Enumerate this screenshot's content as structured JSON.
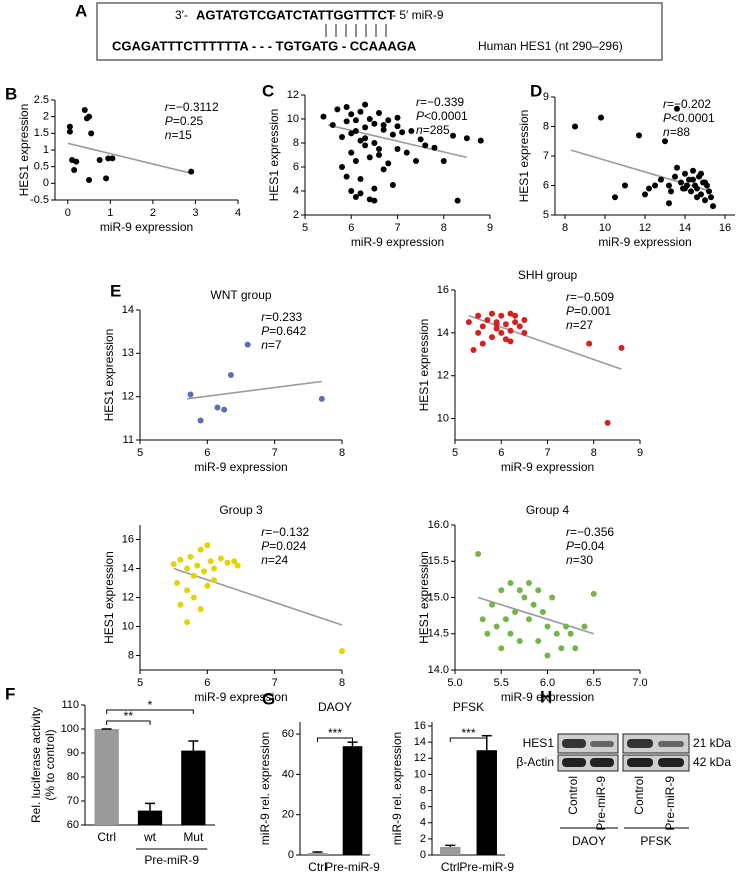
{
  "panel_labels": [
    "A",
    "B",
    "C",
    "D",
    "E",
    "F",
    "G",
    "H"
  ],
  "sequence": {
    "top_prefix": "3′-",
    "top_seq": "AGTATGTCGATCTATTGGTTTCT",
    "top_suffix": "- 5′ miR-9",
    "bottom_seq": "CGAGATTTCTTTTTTA - - - TGTGATG - CCAAAGA",
    "bottom_label": "Human HES1 (nt 290–296)"
  },
  "chart_data": [
    {
      "type": "scatter",
      "xlabel": "miR-9 expression",
      "ylabel": "HES1 expression",
      "stats": [
        "r=−0.3112",
        "P=0.25",
        "n=15"
      ],
      "series": [
        {
          "color": "#000000",
          "x": [
            0.05,
            0.05,
            0.1,
            0.15,
            0.2,
            0.4,
            0.45,
            0.5,
            0.5,
            0.55,
            0.75,
            0.9,
            0.95,
            1.05,
            2.9
          ],
          "y": [
            1.7,
            1.55,
            0.7,
            0.4,
            0.65,
            2.2,
            1.95,
            2.0,
            0.1,
            1.5,
            0.7,
            0.15,
            0.75,
            0.75,
            0.35
          ]
        }
      ],
      "trend": {
        "x": [
          0,
          2.9
        ],
        "y": [
          1.2,
          0.3
        ]
      },
      "xlim": [
        -0.3,
        4
      ],
      "xticks": [
        0,
        1,
        2,
        3,
        4
      ],
      "ylim": [
        -0.5,
        2.5
      ],
      "yticks": [
        -0.5,
        0,
        0.5,
        1,
        1.5,
        2,
        2.5
      ]
    },
    {
      "type": "scatter",
      "xlabel": "miR-9 expression",
      "ylabel": "HES1 expression",
      "stats": [
        "r=−0.339",
        "P<0.0001",
        "n=285"
      ],
      "series": [
        {
          "color": "#000000",
          "x": [
            5.4,
            5.6,
            5.7,
            5.8,
            5.8,
            5.9,
            5.9,
            6.0,
            6.0,
            6.0,
            6.1,
            6.1,
            6.1,
            6.2,
            6.2,
            6.2,
            6.3,
            6.3,
            6.3,
            6.4,
            6.4,
            6.4,
            6.5,
            6.5,
            6.5,
            6.6,
            6.6,
            6.7,
            6.7,
            6.8,
            6.8,
            6.9,
            6.9,
            7.0,
            7.0,
            7.1,
            7.2,
            7.3,
            7.4,
            7.5,
            7.6,
            7.8,
            8.0,
            8.2,
            8.3,
            8.5,
            5.9,
            6.0,
            6.2,
            6.5,
            6.7,
            7.0,
            6.1,
            6.3,
            6.6,
            8.8
          ],
          "y": [
            10.2,
            9.5,
            10.8,
            8.5,
            6.0,
            9.8,
            11.0,
            10.4,
            8.8,
            7.2,
            9.9,
            6.5,
            3.5,
            10.6,
            8.2,
            5.0,
            9.3,
            7.8,
            11.2,
            10.0,
            6.8,
            3.3,
            9.6,
            8.0,
            4.2,
            10.5,
            7.0,
            9.1,
            5.8,
            9.9,
            6.3,
            8.7,
            4.5,
            9.4,
            7.5,
            8.9,
            7.2,
            9.0,
            6.5,
            8.3,
            7.8,
            7.6,
            6.5,
            8.6,
            3.2,
            8.4,
            5.2,
            4.0,
            3.8,
            3.2,
            9.5,
            10.1,
            9.0,
            8.4,
            7.5,
            8.2
          ]
        }
      ],
      "trend": {
        "x": [
          5.5,
          8.5
        ],
        "y": [
          9.5,
          6.8
        ]
      },
      "xlim": [
        5,
        9
      ],
      "xticks": [
        5,
        6,
        7,
        8,
        9
      ],
      "ylim": [
        2,
        12
      ],
      "yticks": [
        2,
        4,
        6,
        8,
        10,
        12
      ]
    },
    {
      "type": "scatter",
      "xlabel": "miR-9 expression",
      "ylabel": "HES1 expression",
      "stats": [
        "r=−0.202",
        "P<0.0001",
        "n=88"
      ],
      "series": [
        {
          "color": "#000000",
          "x": [
            8.5,
            9.8,
            11.7,
            12.2,
            12.5,
            12.8,
            13.0,
            13.2,
            13.3,
            13.5,
            13.6,
            13.8,
            13.9,
            14.0,
            14.1,
            14.2,
            14.3,
            14.4,
            14.5,
            14.6,
            14.7,
            14.8,
            14.9,
            15.0,
            15.1,
            15.2,
            15.3,
            15.4,
            13.6,
            14.0,
            14.4,
            14.8,
            12.0,
            11.0,
            10.5,
            13.2,
            14.6,
            15.0
          ],
          "y": [
            8.0,
            8.3,
            7.7,
            5.9,
            6.0,
            6.2,
            7.5,
            6.0,
            5.8,
            6.3,
            8.6,
            6.1,
            5.9,
            6.4,
            6.0,
            6.2,
            5.8,
            6.5,
            6.0,
            5.9,
            6.3,
            5.7,
            6.1,
            5.5,
            6.0,
            5.8,
            5.6,
            5.3,
            6.6,
            5.9,
            6.2,
            6.4,
            5.7,
            6.0,
            5.6,
            5.4,
            5.6,
            6.1
          ]
        }
      ],
      "trend": {
        "x": [
          8.3,
          15.3
        ],
        "y": [
          7.2,
          5.8
        ]
      },
      "xlim": [
        7.5,
        16.5
      ],
      "xticks": [
        8,
        10,
        12,
        14,
        16
      ],
      "ylim": [
        5,
        9
      ],
      "yticks": [
        5,
        6,
        7,
        8,
        9
      ]
    },
    {
      "type": "scatter",
      "title": "WNT group",
      "xlabel": "miR-9 expression",
      "ylabel": "HES1 expression",
      "stats": [
        "r=0.233",
        "P=0.642",
        "n=7"
      ],
      "series": [
        {
          "color": "#5b6fb8",
          "x": [
            5.75,
            5.9,
            6.15,
            6.25,
            6.35,
            6.6,
            7.7
          ],
          "y": [
            12.05,
            11.45,
            11.75,
            11.7,
            12.5,
            13.2,
            11.95
          ]
        }
      ],
      "trend": {
        "x": [
          5.7,
          7.7
        ],
        "y": [
          11.95,
          12.35
        ]
      },
      "xlim": [
        5,
        8
      ],
      "xticks": [
        5,
        6,
        7,
        8
      ],
      "ylim": [
        11,
        14
      ],
      "yticks": [
        11,
        12,
        13,
        14
      ]
    },
    {
      "type": "scatter",
      "title": "SHH group",
      "xlabel": "miR-9 expression",
      "ylabel": "HES1 expression",
      "stats": [
        "r=−0.509",
        "P=0.001",
        "n=27"
      ],
      "series": [
        {
          "color": "#d42020",
          "x": [
            5.3,
            5.4,
            5.5,
            5.5,
            5.6,
            5.7,
            5.8,
            5.8,
            5.9,
            5.9,
            6.0,
            6.0,
            6.1,
            6.1,
            6.2,
            6.2,
            6.3,
            6.3,
            6.4,
            6.5,
            6.5,
            5.6,
            5.9,
            6.2,
            7.9,
            8.3,
            8.6
          ],
          "y": [
            14.5,
            13.2,
            14.8,
            14.0,
            14.3,
            14.6,
            13.8,
            14.9,
            14.2,
            14.5,
            14.0,
            14.8,
            14.4,
            13.7,
            14.9,
            14.1,
            14.5,
            14.8,
            14.3,
            14.6,
            14.0,
            13.5,
            14.4,
            13.6,
            13.5,
            9.8,
            13.3
          ]
        }
      ],
      "trend": {
        "x": [
          5.3,
          8.6
        ],
        "y": [
          14.8,
          12.3
        ]
      },
      "xlim": [
        5,
        9
      ],
      "xticks": [
        5,
        6,
        7,
        8,
        9
      ],
      "ylim": [
        9,
        16
      ],
      "yticks": [
        10,
        12,
        14,
        16
      ]
    },
    {
      "type": "scatter",
      "title": "Group 3",
      "xlabel": "miR-9 expression",
      "ylabel": "HES1 expression",
      "stats": [
        "r=−0.132",
        "P=0.024",
        "n=24"
      ],
      "series": [
        {
          "color": "#e3d400",
          "x": [
            5.5,
            5.55,
            5.6,
            5.6,
            5.7,
            5.7,
            5.75,
            5.8,
            5.8,
            5.85,
            5.9,
            5.9,
            5.95,
            6.0,
            6.0,
            6.05,
            6.1,
            6.1,
            6.2,
            6.3,
            6.4,
            6.45,
            5.7,
            8.0
          ],
          "y": [
            14.3,
            13.0,
            14.6,
            11.5,
            14.0,
            10.3,
            14.8,
            13.5,
            12.0,
            14.2,
            15.3,
            11.2,
            13.8,
            15.6,
            12.8,
            14.5,
            13.2,
            14.0,
            14.7,
            14.4,
            14.5,
            14.2,
            12.5,
            8.3
          ]
        }
      ],
      "trend": {
        "x": [
          5.5,
          8.0
        ],
        "y": [
          14.0,
          10.1
        ]
      },
      "xlim": [
        5,
        8
      ],
      "xticks": [
        5,
        6,
        7,
        8
      ],
      "ylim": [
        7,
        17
      ],
      "yticks": [
        8,
        10,
        12,
        14,
        16
      ]
    },
    {
      "type": "scatter",
      "title": "Group 4",
      "xlabel": "miR-9 expression",
      "ylabel": "HES1 expression",
      "stats": [
        "r=−0.356",
        "P=0.04",
        "n=30"
      ],
      "series": [
        {
          "color": "#74b44a",
          "x": [
            5.25,
            5.3,
            5.35,
            5.4,
            5.45,
            5.5,
            5.5,
            5.55,
            5.6,
            5.6,
            5.65,
            5.7,
            5.7,
            5.75,
            5.8,
            5.8,
            5.85,
            5.9,
            5.9,
            5.95,
            6.0,
            6.0,
            6.05,
            6.1,
            6.15,
            6.2,
            6.25,
            6.3,
            6.4,
            6.5
          ],
          "y": [
            15.6,
            14.7,
            14.5,
            14.9,
            14.6,
            15.1,
            14.3,
            14.7,
            15.2,
            14.5,
            14.8,
            15.1,
            14.4,
            15.0,
            15.2,
            14.7,
            14.9,
            15.1,
            14.4,
            14.8,
            14.6,
            14.2,
            15.0,
            14.5,
            14.3,
            14.6,
            14.5,
            14.3,
            14.6,
            15.05
          ]
        }
      ],
      "trend": {
        "x": [
          5.25,
          6.5
        ],
        "y": [
          15.0,
          14.5
        ]
      },
      "xlim": [
        5,
        7
      ],
      "xticks": [
        {
          "value": 5,
          "label": "5.0"
        },
        5.5,
        {
          "value": 6,
          "label": "6.0"
        },
        6.5,
        {
          "value": 7,
          "label": "7.0"
        }
      ],
      "ylim": [
        14,
        16
      ],
      "yticks": [
        {
          "value": 14,
          "label": "14.0"
        },
        14.5,
        {
          "value": 15,
          "label": "15.0"
        },
        15.5,
        {
          "value": 16,
          "label": "16.0"
        }
      ]
    },
    {
      "type": "bar",
      "ylabel": [
        "Rel. luciferase activity",
        "(% to control)"
      ],
      "categories": [
        "Ctrl",
        "wt",
        "Mut"
      ],
      "values": [
        100,
        66,
        91
      ],
      "errors": [
        0,
        3,
        4
      ],
      "colors": [
        "#9a9a9a",
        "#000000",
        "#000000"
      ],
      "group_label": "Pre-miR-9",
      "brackets": [
        {
          "from": 0,
          "to": 1,
          "label": "**"
        },
        {
          "from": 0,
          "to": 2,
          "label": "*"
        }
      ],
      "ylim": [
        60,
        110
      ],
      "yticks": [
        60,
        70,
        80,
        90,
        100,
        110
      ]
    },
    {
      "type": "bar",
      "title": "DAOY",
      "ylabel": [
        "miR-9 rel. expression"
      ],
      "categories": [
        "Ctrl",
        "Pre-miR-9"
      ],
      "values": [
        1,
        54
      ],
      "errors": [
        0.5,
        2
      ],
      "colors": [
        "#9a9a9a",
        "#000000"
      ],
      "brackets": [
        {
          "from": 0,
          "to": 1,
          "label": "***"
        }
      ],
      "ylim": [
        0,
        66
      ],
      "yticks": [
        0,
        20,
        40,
        60
      ]
    },
    {
      "type": "bar",
      "title": "PFSK",
      "ylabel": [
        "miR-9 rel. expression"
      ],
      "categories": [
        "Ctrl",
        "Pre-miR-9"
      ],
      "values": [
        1,
        13
      ],
      "errors": [
        0.2,
        1.8
      ],
      "colors": [
        "#9a9a9a",
        "#000000"
      ],
      "brackets": [
        {
          "from": 0,
          "to": 1,
          "label": "***"
        }
      ],
      "ylim": [
        0,
        16.5
      ],
      "yticks": [
        0,
        2,
        4,
        6,
        8,
        10,
        12,
        14,
        16
      ]
    }
  ],
  "blot": {
    "rows": [
      "HES1",
      "β-Actin"
    ],
    "sizes": [
      "21 kDa",
      "42 kDa"
    ],
    "lanes": [
      "Control",
      "Pre-miR-9",
      "Control",
      "Pre-miR-9"
    ],
    "groups": [
      "DAOY",
      "PFSK"
    ]
  }
}
